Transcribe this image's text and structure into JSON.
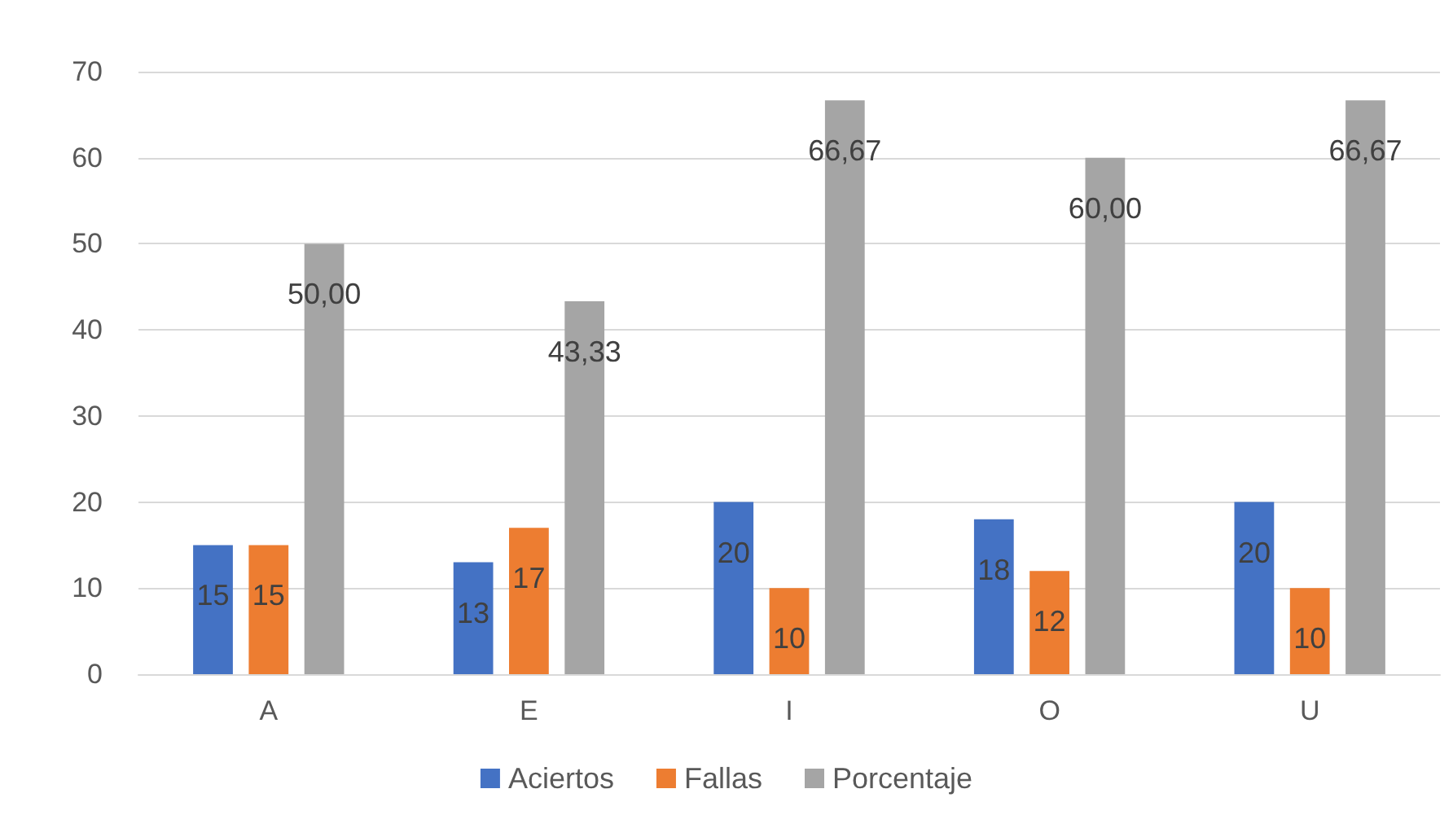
{
  "chart_data": {
    "type": "bar",
    "categories": [
      "A",
      "E",
      "I",
      "O",
      "U"
    ],
    "series": [
      {
        "name": "Aciertos",
        "color": "#4472c4",
        "values": [
          15,
          13,
          20,
          18,
          20
        ],
        "value_labels": [
          "15",
          "13",
          "20",
          "18",
          "20"
        ]
      },
      {
        "name": "Fallas",
        "color": "#ed7d31",
        "values": [
          15,
          17,
          10,
          12,
          10
        ],
        "value_labels": [
          "15",
          "17",
          "10",
          "12",
          "10"
        ]
      },
      {
        "name": "Porcentaje",
        "color": "#a5a5a5",
        "values": [
          50,
          43.33,
          66.67,
          60,
          66.67
        ],
        "value_labels": [
          "50,00",
          "43,33",
          "66,67",
          "60,00",
          "66,67"
        ]
      }
    ],
    "ylim": [
      0,
      70
    ],
    "yticks": [
      0,
      10,
      20,
      30,
      40,
      50,
      60,
      70
    ],
    "grid": "y",
    "legend": "bottom"
  }
}
